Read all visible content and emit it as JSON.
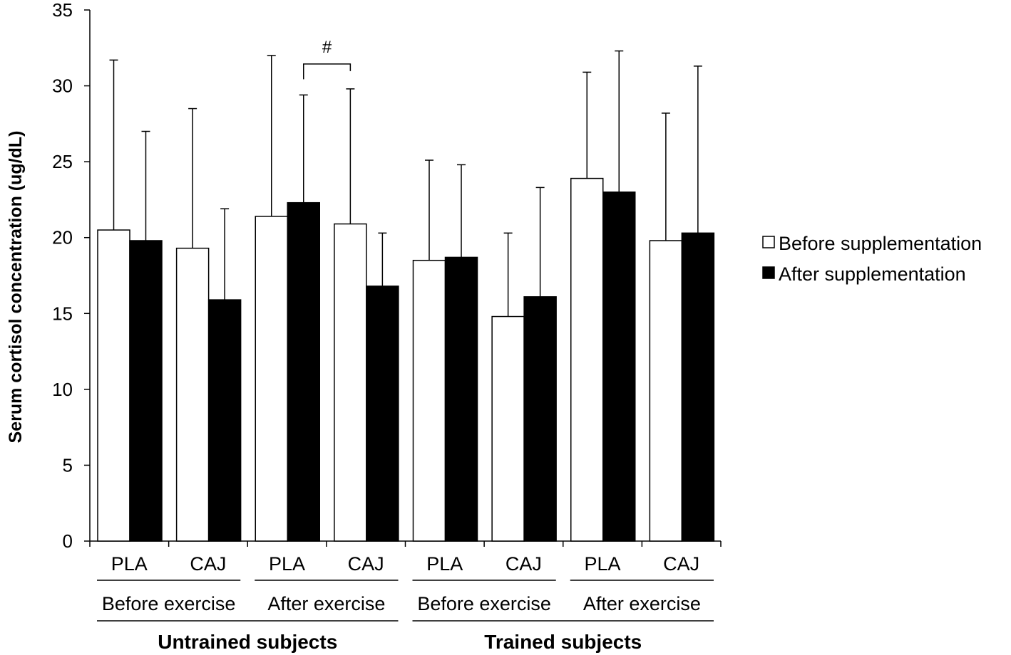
{
  "chart_data": {
    "type": "bar",
    "title": "",
    "xlabel": "",
    "ylabel": "Serum cortisol concentration (ug/dL)",
    "ylim": [
      0,
      35
    ],
    "yticks": [
      0,
      5,
      10,
      15,
      20,
      25,
      30,
      35
    ],
    "grid": false,
    "legend_position": "right",
    "categories": [
      "PLA",
      "CAJ",
      "PLA",
      "CAJ",
      "PLA",
      "CAJ",
      "PLA",
      "CAJ"
    ],
    "groups": [
      {
        "label": "Before exercise",
        "categories": [
          0,
          1
        ]
      },
      {
        "label": "After exercise",
        "categories": [
          2,
          3
        ]
      },
      {
        "label": "Before exercise",
        "categories": [
          4,
          5
        ]
      },
      {
        "label": "After exercise",
        "categories": [
          6,
          7
        ]
      }
    ],
    "subjects": [
      {
        "label": "Untrained subjects",
        "groups": [
          0,
          1
        ]
      },
      {
        "label": "Trained subjects",
        "groups": [
          2,
          3
        ]
      }
    ],
    "series": [
      {
        "name": "Before supplementation",
        "color": "#ffffff",
        "values": [
          20.5,
          19.3,
          21.4,
          20.9,
          18.5,
          14.8,
          23.9,
          19.8
        ],
        "error": [
          11.2,
          9.2,
          10.6,
          8.9,
          6.6,
          5.5,
          7.0,
          8.4
        ]
      },
      {
        "name": "After supplementation",
        "color": "#000000",
        "values": [
          19.8,
          15.9,
          22.3,
          16.8,
          18.7,
          16.1,
          23.0,
          20.3
        ],
        "error": [
          7.2,
          6.0,
          7.1,
          3.5,
          6.1,
          7.2,
          9.3,
          11.0
        ]
      }
    ],
    "annotations": [
      {
        "text": "#",
        "from_category": 2,
        "from_series": 1,
        "to_category": 3,
        "to_series": 0
      }
    ]
  }
}
